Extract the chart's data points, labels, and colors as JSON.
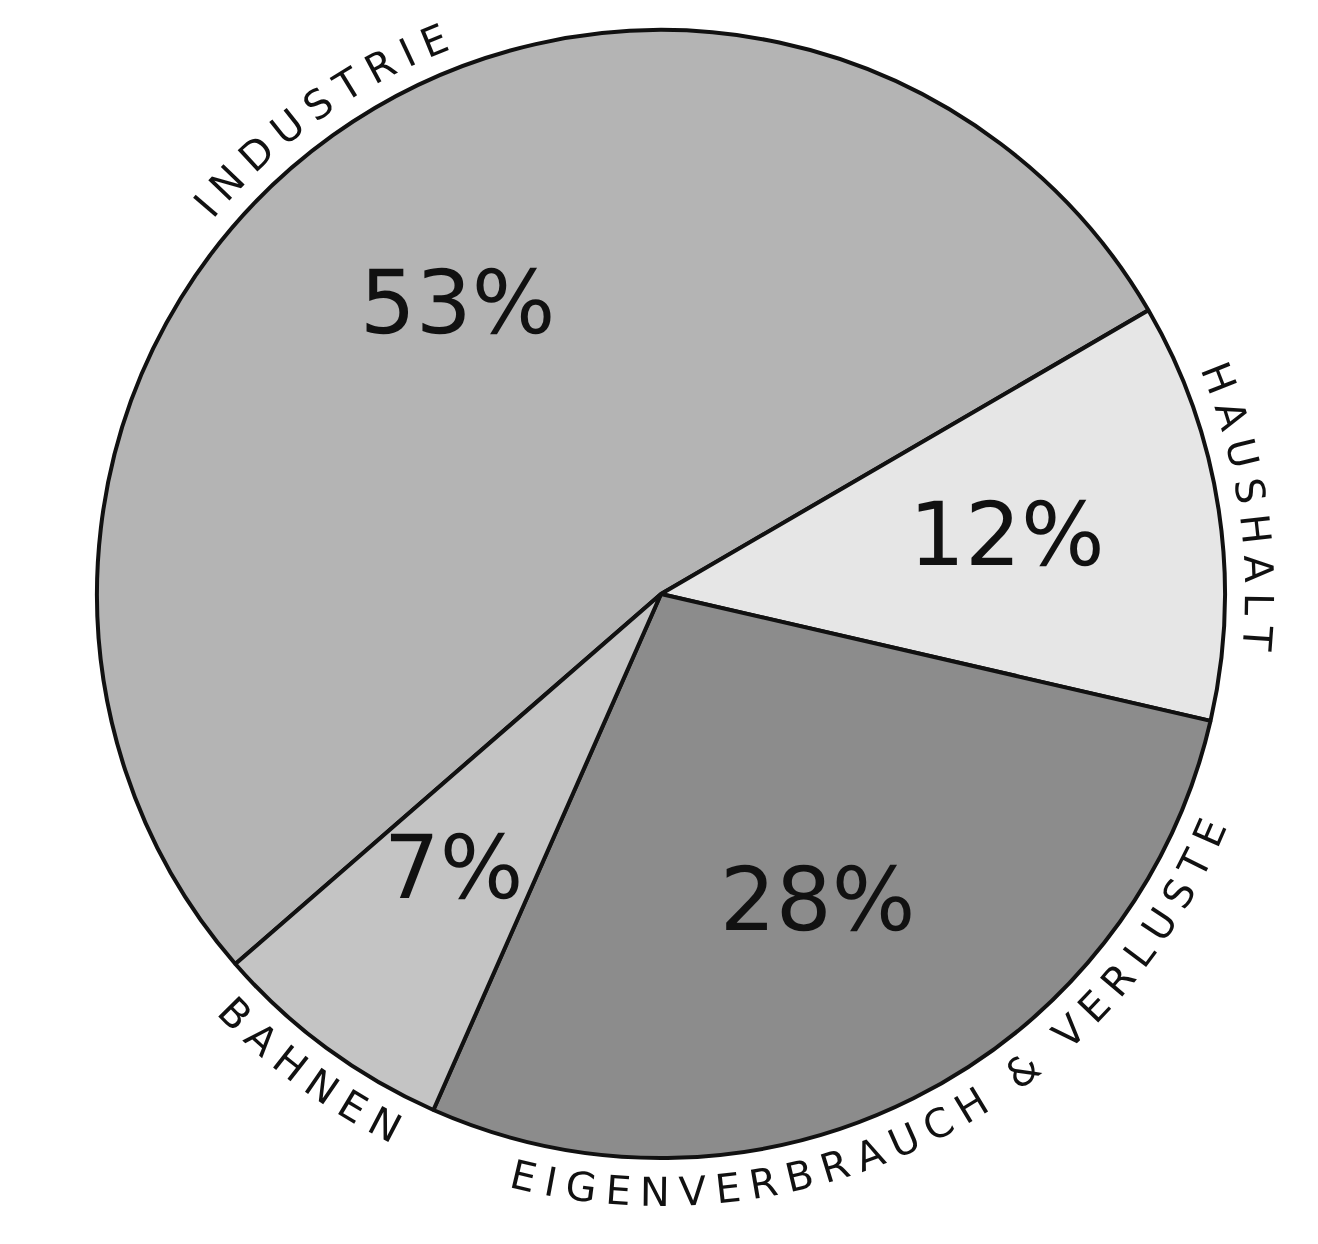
{
  "chart_data": {
    "type": "pie",
    "categories": [
      "INDUSTRIE",
      "HAUSHALT",
      "EIGENVERBRAUCH & VERLUSTE",
      "BAHNEN"
    ],
    "values": [
      53,
      12,
      28,
      7
    ],
    "colors": [
      "#b4b4b4",
      "#e6e6e6",
      "#8c8c8c",
      "#c4c4c4"
    ],
    "value_labels": [
      "53%",
      "12%",
      "28%",
      "7%"
    ],
    "legend": false
  }
}
